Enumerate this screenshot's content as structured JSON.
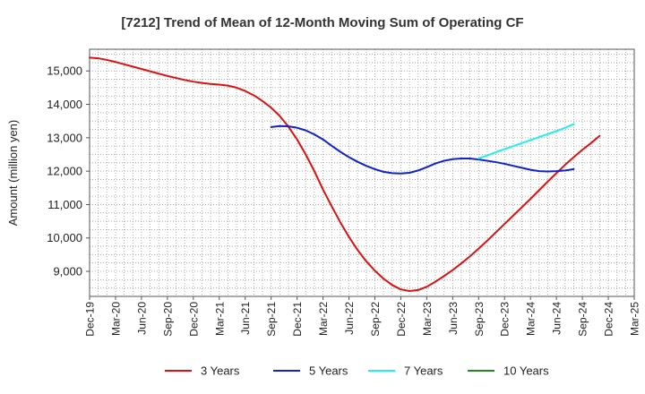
{
  "chart_data": {
    "type": "line",
    "title": "[7212]  Trend of Mean of 12-Month Moving Sum of Operating CF",
    "xlabel": "",
    "ylabel": "Amount (million yen)",
    "ylim": [
      8250,
      15650
    ],
    "yticks": [
      9000,
      10000,
      11000,
      12000,
      13000,
      14000,
      15000
    ],
    "ytick_labels": [
      "9,000",
      "10,000",
      "11,000",
      "12,000",
      "13,000",
      "14,000",
      "15,000"
    ],
    "x_months": [
      "Dec-19",
      "Jan-20",
      "Feb-20",
      "Mar-20",
      "Apr-20",
      "May-20",
      "Jun-20",
      "Jul-20",
      "Aug-20",
      "Sep-20",
      "Oct-20",
      "Nov-20",
      "Dec-20",
      "Jan-21",
      "Feb-21",
      "Mar-21",
      "Apr-21",
      "May-21",
      "Jun-21",
      "Jul-21",
      "Aug-21",
      "Sep-21",
      "Oct-21",
      "Nov-21",
      "Dec-21",
      "Jan-22",
      "Feb-22",
      "Mar-22",
      "Apr-22",
      "May-22",
      "Jun-22",
      "Jul-22",
      "Aug-22",
      "Sep-22",
      "Oct-22",
      "Nov-22",
      "Dec-22",
      "Jan-23",
      "Feb-23",
      "Mar-23",
      "Apr-23",
      "May-23",
      "Jun-23",
      "Jul-23",
      "Aug-23",
      "Sep-23",
      "Oct-23",
      "Nov-23",
      "Dec-23",
      "Jan-24",
      "Feb-24",
      "Mar-24",
      "Apr-24",
      "May-24",
      "Jun-24",
      "Jul-24",
      "Aug-24",
      "Sep-24",
      "Oct-24",
      "Nov-24",
      "Dec-24",
      "Jan-25",
      "Feb-25",
      "Mar-25"
    ],
    "xtick_labels": [
      "Dec-19",
      "Mar-20",
      "Jun-20",
      "Sep-20",
      "Dec-20",
      "Mar-21",
      "Jun-21",
      "Sep-21",
      "Dec-21",
      "Mar-22",
      "Jun-22",
      "Sep-22",
      "Dec-22",
      "Mar-23",
      "Jun-23",
      "Sep-23",
      "Dec-23",
      "Mar-24",
      "Jun-24",
      "Sep-24",
      "Dec-24",
      "Mar-25"
    ],
    "grid": true,
    "legend_position": "bottom",
    "series": [
      {
        "name": "3 Years",
        "color": "#dd1111",
        "start": "Dec-19",
        "values": [
          15400,
          15380,
          15330,
          15270,
          15200,
          15130,
          15060,
          14990,
          14920,
          14850,
          14790,
          14730,
          14680,
          14640,
          14610,
          14590,
          14560,
          14500,
          14400,
          14270,
          14100,
          13900,
          13650,
          13330,
          12950,
          12500,
          12000,
          11450,
          10950,
          10470,
          10030,
          9640,
          9300,
          9020,
          8780,
          8590,
          8460,
          8410,
          8440,
          8540,
          8690,
          8860,
          9040,
          9240,
          9450,
          9680,
          9920,
          10170,
          10420,
          10670,
          10920,
          11170,
          11430,
          11690,
          11940,
          12190,
          12420,
          12640,
          12840,
          13060
        ]
      },
      {
        "name": "5 Years",
        "color": "#1122cc",
        "start": "Sep-21",
        "values": [
          13320,
          13350,
          13340,
          13300,
          13220,
          13100,
          12950,
          12760,
          12580,
          12420,
          12280,
          12160,
          12060,
          11980,
          11940,
          11930,
          11950,
          12020,
          12120,
          12230,
          12310,
          12360,
          12380,
          12380,
          12350,
          12310,
          12270,
          12220,
          12160,
          12100,
          12040,
          12000,
          11990,
          12000,
          12020,
          12060
        ]
      },
      {
        "name": "7 Years",
        "color": "#22eeee",
        "start": "Sep-23",
        "values": [
          12380,
          12470,
          12570,
          12660,
          12750,
          12840,
          12930,
          13020,
          13110,
          13200,
          13300,
          13410
        ]
      },
      {
        "name": "10 Years",
        "color": "#228822",
        "start": "Sep-24",
        "values": []
      }
    ]
  }
}
